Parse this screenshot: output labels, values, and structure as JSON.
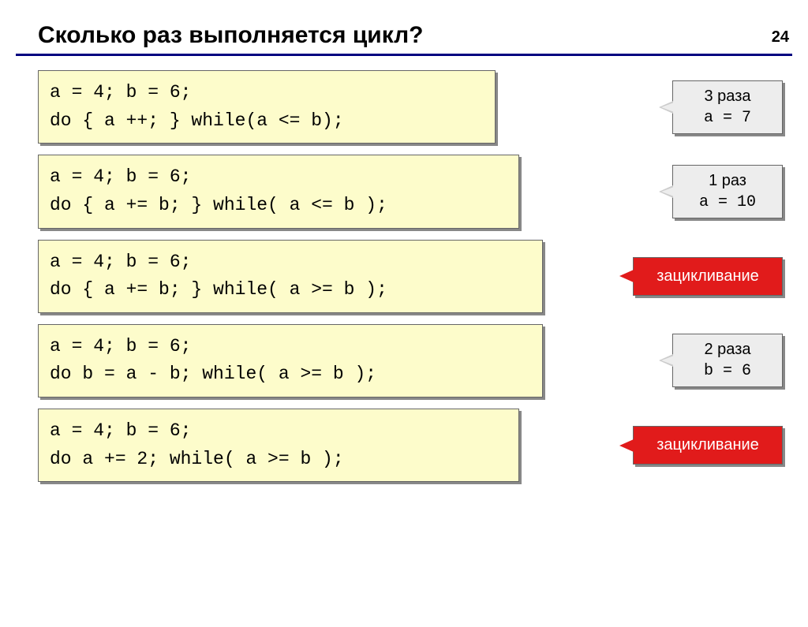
{
  "page_number": "24",
  "title": "Сколько раз выполняется цикл?",
  "rows": [
    {
      "code": "a = 4; b = 6;\ndo { a ++; } while(a <= b);",
      "code_width": 580,
      "answer_type": "gray",
      "answer_line1": "3 раза",
      "answer_line2": "a = 7",
      "answer_width": 140
    },
    {
      "code": "a = 4; b = 6;\ndo { a += b; } while( a <= b );",
      "code_width": 610,
      "answer_type": "gray",
      "answer_line1": "1 раз",
      "answer_line2": "a = 10",
      "answer_width": 140
    },
    {
      "code": "a = 4; b = 6;\ndo { a += b; } while( a >= b );",
      "code_width": 640,
      "answer_type": "red",
      "answer_line1": "зацикливание",
      "answer_width": 190
    },
    {
      "code": "a = 4; b = 6;\ndo b = a - b; while( a >= b );",
      "code_width": 640,
      "answer_type": "gray",
      "answer_line1": "2 раза",
      "answer_line2": "b =  6",
      "answer_width": 140
    },
    {
      "code": "a = 4; b = 6;\ndo a += 2; while( a >= b );",
      "code_width": 610,
      "answer_type": "red",
      "answer_line1": "зацикливание",
      "answer_width": 190
    }
  ],
  "colors": {
    "code_bg": "#fdfccb",
    "gray_bg": "#ededed",
    "red_bg": "#e11b1b",
    "hr": "#000080"
  }
}
